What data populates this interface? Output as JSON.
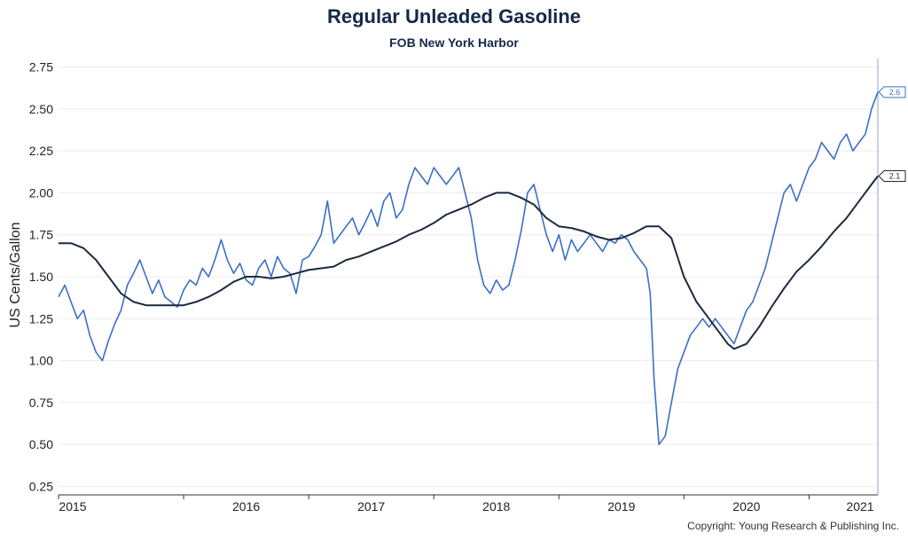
{
  "chart_data": {
    "type": "line",
    "title": "Regular Unleaded Gasoline",
    "subtitle": "FOB New York Harbor",
    "ylabel": "US Cents/Gallon",
    "xlabel": "",
    "ylim": [
      0.2,
      2.8
    ],
    "xlim": [
      2015.0,
      2021.55
    ],
    "y_ticks": [
      "0.25",
      "0.50",
      "0.75",
      "1.00",
      "1.25",
      "1.50",
      "1.75",
      "2.00",
      "2.25",
      "2.50",
      "2.75"
    ],
    "x_ticks": [
      "2015",
      "2016",
      "2017",
      "2018",
      "2019",
      "2020",
      "2021"
    ],
    "grid": true,
    "legend": "none",
    "end_labels": [
      "2.6",
      "2.1"
    ],
    "series": [
      {
        "color": "#3a6fc4",
        "x": [
          2015.0,
          2015.05,
          2015.1,
          2015.15,
          2015.2,
          2015.25,
          2015.3,
          2015.35,
          2015.4,
          2015.45,
          2015.5,
          2015.55,
          2015.6,
          2015.65,
          2015.7,
          2015.75,
          2015.8,
          2015.85,
          2015.9,
          2015.95,
          2016.0,
          2016.05,
          2016.1,
          2016.15,
          2016.2,
          2016.25,
          2016.3,
          2016.35,
          2016.4,
          2016.45,
          2016.5,
          2016.55,
          2016.6,
          2016.65,
          2016.7,
          2016.75,
          2016.8,
          2016.85,
          2016.9,
          2016.95,
          2017.0,
          2017.05,
          2017.1,
          2017.15,
          2017.2,
          2017.25,
          2017.3,
          2017.35,
          2017.4,
          2017.45,
          2017.5,
          2017.55,
          2017.6,
          2017.65,
          2017.7,
          2017.75,
          2017.8,
          2017.85,
          2017.9,
          2017.95,
          2018.0,
          2018.05,
          2018.1,
          2018.15,
          2018.2,
          2018.25,
          2018.3,
          2018.35,
          2018.4,
          2018.45,
          2018.5,
          2018.55,
          2018.6,
          2018.65,
          2018.7,
          2018.75,
          2018.8,
          2018.85,
          2018.9,
          2018.95,
          2019.0,
          2019.05,
          2019.1,
          2019.15,
          2019.2,
          2019.25,
          2019.3,
          2019.35,
          2019.4,
          2019.45,
          2019.5,
          2019.55,
          2019.6,
          2019.65,
          2019.7,
          2019.73,
          2019.76,
          2019.8,
          2019.85,
          2019.9,
          2019.95,
          2020.0,
          2020.05,
          2020.1,
          2020.15,
          2020.2,
          2020.25,
          2020.3,
          2020.35,
          2020.4,
          2020.45,
          2020.5,
          2020.55,
          2020.6,
          2020.65,
          2020.7,
          2020.75,
          2020.8,
          2020.85,
          2020.9,
          2020.95,
          2021.0,
          2021.05,
          2021.1,
          2021.15,
          2021.2,
          2021.25,
          2021.3,
          2021.35,
          2021.4,
          2021.45,
          2021.5,
          2021.55
        ],
        "values": [
          1.38,
          1.45,
          1.35,
          1.25,
          1.3,
          1.15,
          1.05,
          1.0,
          1.12,
          1.22,
          1.3,
          1.45,
          1.52,
          1.6,
          1.5,
          1.4,
          1.48,
          1.38,
          1.35,
          1.32,
          1.42,
          1.48,
          1.45,
          1.55,
          1.5,
          1.6,
          1.72,
          1.6,
          1.52,
          1.58,
          1.48,
          1.45,
          1.55,
          1.6,
          1.5,
          1.62,
          1.55,
          1.52,
          1.4,
          1.6,
          1.62,
          1.68,
          1.75,
          1.95,
          1.7,
          1.75,
          1.8,
          1.85,
          1.75,
          1.82,
          1.9,
          1.8,
          1.95,
          2.0,
          1.85,
          1.9,
          2.05,
          2.15,
          2.1,
          2.05,
          2.15,
          2.1,
          2.05,
          2.1,
          2.15,
          2.0,
          1.85,
          1.6,
          1.45,
          1.4,
          1.48,
          1.42,
          1.45,
          1.6,
          1.78,
          2.0,
          2.05,
          1.9,
          1.75,
          1.65,
          1.75,
          1.6,
          1.72,
          1.65,
          1.7,
          1.75,
          1.7,
          1.65,
          1.72,
          1.7,
          1.75,
          1.72,
          1.65,
          1.6,
          1.55,
          1.4,
          0.9,
          0.5,
          0.55,
          0.75,
          0.95,
          1.05,
          1.15,
          1.2,
          1.25,
          1.2,
          1.25,
          1.2,
          1.15,
          1.1,
          1.2,
          1.3,
          1.35,
          1.45,
          1.55,
          1.7,
          1.85,
          2.0,
          2.05,
          1.95,
          2.05,
          2.15,
          2.2,
          2.3,
          2.25,
          2.2,
          2.3,
          2.35,
          2.25,
          2.3,
          2.35,
          2.5,
          2.6
        ]
      },
      {
        "color": "#1c2a3d",
        "x": [
          2015.0,
          2015.1,
          2015.2,
          2015.3,
          2015.4,
          2015.5,
          2015.6,
          2015.7,
          2015.8,
          2015.9,
          2016.0,
          2016.1,
          2016.2,
          2016.3,
          2016.4,
          2016.5,
          2016.6,
          2016.7,
          2016.8,
          2016.9,
          2017.0,
          2017.1,
          2017.2,
          2017.3,
          2017.4,
          2017.5,
          2017.6,
          2017.7,
          2017.8,
          2017.9,
          2018.0,
          2018.1,
          2018.2,
          2018.3,
          2018.4,
          2018.5,
          2018.6,
          2018.7,
          2018.8,
          2018.9,
          2019.0,
          2019.1,
          2019.2,
          2019.3,
          2019.4,
          2019.5,
          2019.6,
          2019.7,
          2019.8,
          2019.9,
          2020.0,
          2020.1,
          2020.2,
          2020.3,
          2020.35,
          2020.4,
          2020.5,
          2020.6,
          2020.7,
          2020.8,
          2020.9,
          2021.0,
          2021.1,
          2021.2,
          2021.3,
          2021.4,
          2021.5,
          2021.55
        ],
        "values": [
          1.7,
          1.7,
          1.67,
          1.6,
          1.5,
          1.4,
          1.35,
          1.33,
          1.33,
          1.33,
          1.33,
          1.35,
          1.38,
          1.42,
          1.47,
          1.5,
          1.5,
          1.49,
          1.5,
          1.52,
          1.54,
          1.55,
          1.56,
          1.6,
          1.62,
          1.65,
          1.68,
          1.71,
          1.75,
          1.78,
          1.82,
          1.87,
          1.9,
          1.93,
          1.97,
          2.0,
          2.0,
          1.97,
          1.93,
          1.85,
          1.8,
          1.79,
          1.77,
          1.74,
          1.72,
          1.73,
          1.76,
          1.8,
          1.8,
          1.73,
          1.5,
          1.35,
          1.25,
          1.15,
          1.1,
          1.07,
          1.1,
          1.2,
          1.32,
          1.43,
          1.53,
          1.6,
          1.68,
          1.77,
          1.85,
          1.95,
          2.05,
          2.1
        ]
      }
    ]
  },
  "copyright": "Copyright: Young Research & Publishing Inc."
}
